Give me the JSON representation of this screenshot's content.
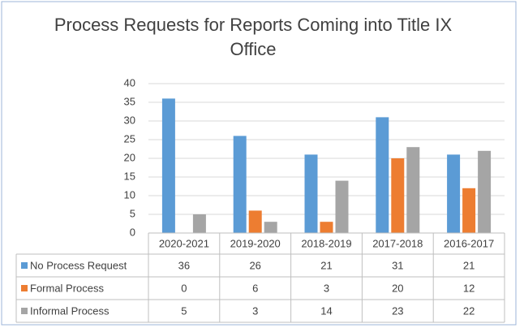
{
  "chart_data": {
    "type": "bar",
    "title": "Process Requests for Reports Coming into Title IX Office",
    "categories": [
      "2020-2021",
      "2019-2020",
      "2018-2019",
      "2017-2018",
      "2016-2017"
    ],
    "series": [
      {
        "name": "No Process Request",
        "color": "#5b9bd5",
        "values": [
          36,
          26,
          21,
          31,
          21
        ]
      },
      {
        "name": "Formal Process",
        "color": "#ed7d31",
        "values": [
          0,
          6,
          3,
          20,
          12
        ]
      },
      {
        "name": "Informal Process",
        "color": "#a5a5a5",
        "values": [
          5,
          3,
          14,
          23,
          22
        ]
      }
    ],
    "ylim": [
      0,
      40
    ],
    "yticks": [
      0,
      5,
      10,
      15,
      20,
      25,
      30,
      35,
      40
    ],
    "grid": true
  }
}
